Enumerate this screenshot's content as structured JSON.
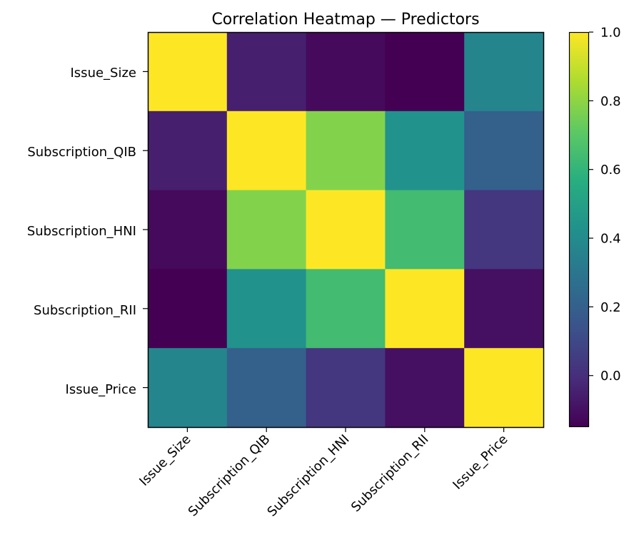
{
  "chart_data": {
    "type": "heatmap",
    "title": "Correlation Heatmap — Predictors",
    "xlabel": "",
    "ylabel": "",
    "row_labels": [
      "Issue_Size",
      "Subscription_QIB",
      "Subscription_HNI",
      "Subscription_RII",
      "Issue_Price"
    ],
    "col_labels": [
      "Issue_Size",
      "Subscription_QIB",
      "Subscription_HNI",
      "Subscription_RII",
      "Issue_Price"
    ],
    "values": [
      [
        1.0,
        -0.05,
        -0.12,
        -0.15,
        0.37
      ],
      [
        -0.05,
        1.0,
        0.78,
        0.43,
        0.2
      ],
      [
        -0.12,
        0.78,
        1.0,
        0.64,
        0.03
      ],
      [
        -0.15,
        0.43,
        0.64,
        1.0,
        -0.1
      ],
      [
        0.37,
        0.2,
        0.03,
        -0.1,
        1.0
      ]
    ],
    "colormap": "viridis",
    "colorbar": {
      "vmin": -0.15,
      "vmax": 1.0,
      "ticks": [
        0.0,
        0.2,
        0.4,
        0.6,
        0.8,
        1.0
      ],
      "tick_labels": [
        "0.0",
        "0.2",
        "0.4",
        "0.6",
        "0.8",
        "1.0"
      ]
    },
    "grid": false,
    "legend_placement": "right"
  }
}
